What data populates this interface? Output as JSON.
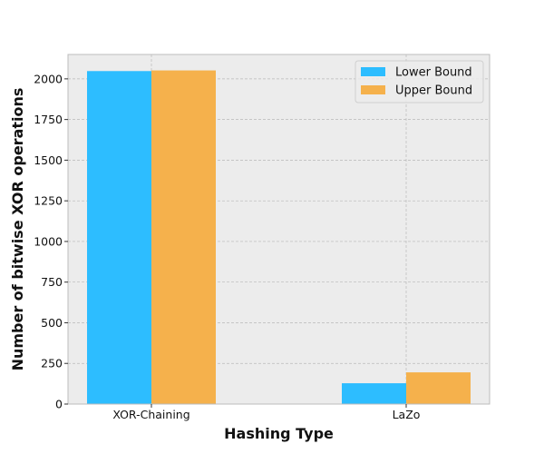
{
  "chart_data": {
    "type": "bar",
    "categories": [
      "XOR-Chaining",
      "LaZo"
    ],
    "series": [
      {
        "name": "Lower Bound",
        "values": [
          2048,
          128
        ],
        "color": "#2dbdff"
      },
      {
        "name": "Upper Bound",
        "values": [
          2052,
          195
        ],
        "color": "#f5b14c"
      }
    ],
    "xlabel": "Hashing Type",
    "ylabel": "Number of bitwise XOR operations",
    "ylim": [
      0,
      2150
    ],
    "yticks": [
      0,
      250,
      500,
      750,
      1000,
      1250,
      1500,
      1750,
      2000
    ],
    "grid": true,
    "legend_position": "top-right",
    "colors": {
      "background": "#ececec",
      "grid": "#b8b8b8",
      "frame": "#bcbcbc"
    }
  }
}
